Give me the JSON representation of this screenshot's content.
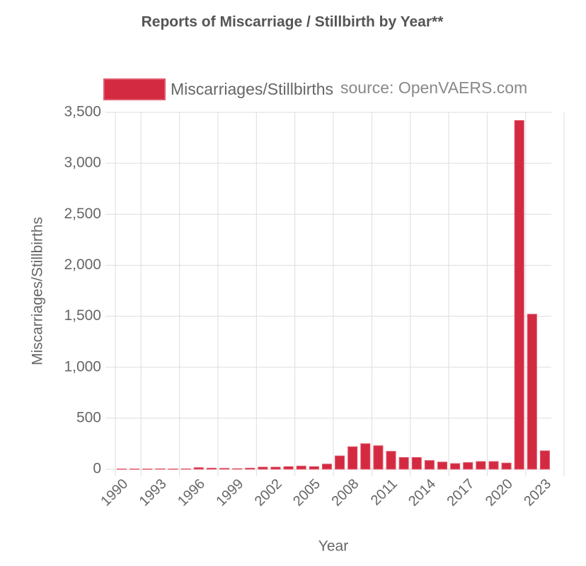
{
  "chart_data": {
    "type": "bar",
    "title": "Reports of Miscarriage / Stillbirth by Year**",
    "source": "source: OpenVAERS.com",
    "xlabel": "Year",
    "ylabel": "Miscarriages/Stillbirths",
    "categories": [
      "1990",
      null,
      null,
      "1993",
      null,
      null,
      "1996",
      null,
      null,
      "1999",
      null,
      null,
      "2002",
      null,
      null,
      "2005",
      null,
      null,
      "2008",
      null,
      null,
      "2011",
      null,
      null,
      "2014",
      null,
      null,
      "2017",
      null,
      null,
      "2020",
      null,
      null,
      "2023"
    ],
    "series": [
      {
        "name": "Miscarriages/Stillbirths",
        "color": "#d32a41",
        "values": [
          2,
          2,
          2,
          3,
          2,
          3,
          15,
          10,
          8,
          5,
          10,
          20,
          20,
          25,
          30,
          25,
          50,
          130,
          220,
          250,
          230,
          175,
          115,
          115,
          85,
          70,
          55,
          65,
          75,
          75,
          60,
          3420,
          1520,
          180
        ]
      }
    ],
    "ylim": [
      0,
      3500
    ],
    "yticks": [
      0,
      500,
      {
        "value": 1000,
        "label": "1,000"
      },
      {
        "value": 1500,
        "label": "1,500"
      },
      {
        "value": 2000,
        "label": "2,000"
      },
      {
        "value": 2500,
        "label": "2,500"
      },
      {
        "value": 3000,
        "label": "3,000"
      },
      {
        "value": 3500,
        "label": "3,500"
      }
    ],
    "grid": true,
    "legend": "top"
  }
}
